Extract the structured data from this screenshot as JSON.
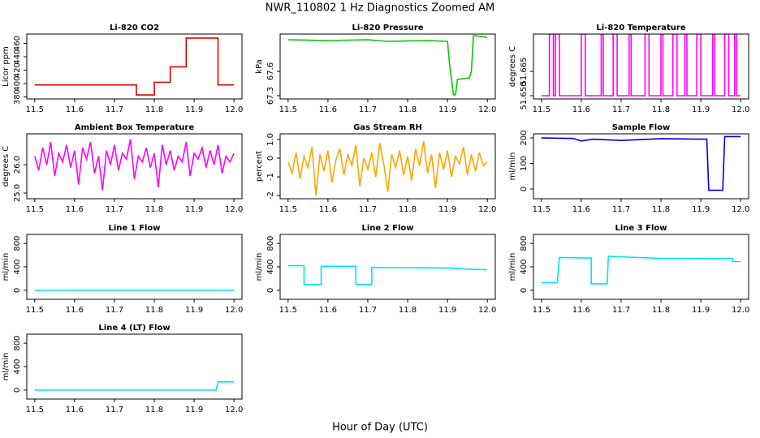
{
  "title": "NWR_110802  1 Hz Diagnostics Zoomed AM",
  "x_label": "Hour of Day (UTC)",
  "chart_data": [
    {
      "type": "line",
      "title": "Li-820 CO2",
      "y_label": "Licor ppm",
      "xlim": [
        11.48,
        12.02
      ],
      "ylim": [
        377,
        474
      ],
      "xticks": [
        11.5,
        11.6,
        11.7,
        11.8,
        11.9,
        {
          "value": 12,
          "label": "12.0"
        }
      ],
      "yticks": [
        380,
        400,
        420,
        440,
        460
      ],
      "series": [
        {
          "color": "#e00000",
          "x": [
            11.5,
            11.755,
            11.755,
            11.8,
            11.8,
            11.84,
            11.84,
            11.88,
            11.88,
            11.96,
            11.96,
            12.0
          ],
          "values": [
            398,
            398,
            383,
            383,
            402,
            402,
            425,
            425,
            468,
            468,
            398,
            398
          ]
        }
      ]
    },
    {
      "type": "line",
      "title": "Li-820 Pressure",
      "y_label": "kPa",
      "xlim": [
        11.48,
        12.02
      ],
      "ylim": [
        67.26,
        68.06
      ],
      "xticks": [
        11.5,
        11.6,
        11.7,
        11.8,
        11.9,
        {
          "value": 12,
          "label": "12.0"
        }
      ],
      "yticks": [
        67.3,
        67.6
      ],
      "series": [
        {
          "color": "#00cc00",
          "x": [
            11.5,
            11.6,
            11.7,
            11.75,
            11.85,
            11.9,
            11.905,
            11.915,
            11.92,
            11.925,
            11.955,
            11.96,
            11.965,
            11.97,
            12.0
          ],
          "values": [
            67.99,
            67.98,
            67.99,
            67.97,
            67.98,
            67.97,
            67.7,
            67.31,
            67.31,
            67.5,
            67.52,
            67.6,
            68.04,
            68.04,
            68.02
          ]
        }
      ]
    },
    {
      "type": "line",
      "title": "Li-820 Temperature",
      "y_label": "degrees C",
      "xlim": [
        11.48,
        12.02
      ],
      "ylim": [
        51.648,
        51.688
      ],
      "xticks": [
        11.5,
        11.6,
        11.7,
        11.8,
        11.9,
        {
          "value": 12,
          "label": "12.0"
        }
      ],
      "yticks": [
        {
          "value": 51.65,
          "label": "51.650"
        },
        {
          "value": 51.665,
          "label": "51.665"
        }
      ],
      "series": [
        {
          "color": "#ff00ff",
          "x": [
            11.5,
            11.52,
            11.52,
            11.53,
            11.53,
            11.535,
            11.535,
            11.545,
            11.545,
            11.6,
            11.6,
            11.61,
            11.61,
            11.65,
            11.65,
            11.655,
            11.655,
            11.68,
            11.68,
            11.69,
            11.69,
            11.72,
            11.72,
            11.725,
            11.725,
            11.76,
            11.76,
            11.77,
            11.77,
            11.8,
            11.8,
            11.805,
            11.805,
            11.83,
            11.83,
            11.84,
            11.84,
            11.86,
            11.86,
            11.865,
            11.865,
            11.89,
            11.89,
            11.9,
            11.9,
            11.93,
            11.93,
            11.935,
            11.935,
            11.96,
            11.96,
            11.97,
            11.97,
            11.985,
            11.985,
            11.99,
            11.99,
            12.0
          ],
          "values": [
            51.65,
            51.65,
            51.688,
            51.688,
            51.65,
            51.65,
            51.688,
            51.688,
            51.65,
            51.65,
            51.688,
            51.688,
            51.65,
            51.65,
            51.688,
            51.688,
            51.65,
            51.65,
            51.688,
            51.688,
            51.65,
            51.65,
            51.688,
            51.688,
            51.65,
            51.65,
            51.688,
            51.688,
            51.65,
            51.65,
            51.688,
            51.688,
            51.65,
            51.65,
            51.688,
            51.688,
            51.65,
            51.65,
            51.688,
            51.688,
            51.65,
            51.65,
            51.688,
            51.688,
            51.65,
            51.65,
            51.688,
            51.688,
            51.65,
            51.65,
            51.688,
            51.688,
            51.65,
            51.65,
            51.688,
            51.688,
            51.65,
            51.65
          ]
        }
      ]
    },
    {
      "type": "line",
      "title": "Ambient Box Temperature",
      "y_label": "degrees C",
      "xlim": [
        11.48,
        12.02
      ],
      "ylim": [
        24.8,
        27.09
      ],
      "xticks": [
        11.5,
        11.6,
        11.7,
        11.8,
        11.9,
        {
          "value": 12,
          "label": "12.0"
        }
      ],
      "yticks": [
        {
          "value": 25,
          "label": "25.0"
        },
        {
          "value": 26,
          "label": "26.0"
        }
      ],
      "series": [
        {
          "color": "#ff00ff",
          "x": [
            11.5,
            11.51,
            11.52,
            11.53,
            11.54,
            11.55,
            11.56,
            11.57,
            11.58,
            11.59,
            11.6,
            11.61,
            11.62,
            11.63,
            11.64,
            11.65,
            11.66,
            11.67,
            11.68,
            11.69,
            11.7,
            11.71,
            11.72,
            11.73,
            11.74,
            11.75,
            11.76,
            11.77,
            11.78,
            11.79,
            11.8,
            11.81,
            11.82,
            11.83,
            11.84,
            11.85,
            11.86,
            11.87,
            11.88,
            11.89,
            11.9,
            11.91,
            11.92,
            11.93,
            11.94,
            11.95,
            11.96,
            11.97,
            11.98,
            11.99,
            12.0
          ],
          "values": [
            26.3,
            25.8,
            26.6,
            26.0,
            26.8,
            25.6,
            26.4,
            26.1,
            26.7,
            25.9,
            26.5,
            25.3,
            26.6,
            26.2,
            26.8,
            25.7,
            26.3,
            25.1,
            26.5,
            26.0,
            26.7,
            25.8,
            26.4,
            26.2,
            26.9,
            25.5,
            26.3,
            26.1,
            26.6,
            25.9,
            26.4,
            25.2,
            26.7,
            26.0,
            26.5,
            25.8,
            26.3,
            26.1,
            26.8,
            25.6,
            26.4,
            26.2,
            26.6,
            25.9,
            26.5,
            26.0,
            26.7,
            25.7,
            26.3,
            26.1,
            26.4
          ]
        }
      ]
    },
    {
      "type": "line",
      "title": "Gas Stream RH",
      "y_label": "percent",
      "xlim": [
        11.48,
        12.02
      ],
      "ylim": [
        -2.17,
        1.3
      ],
      "xticks": [
        11.5,
        11.6,
        11.7,
        11.8,
        11.9,
        {
          "value": 12,
          "label": "12.0"
        }
      ],
      "yticks": [
        -2,
        -1,
        0,
        {
          "value": 1,
          "label": "1.0"
        }
      ],
      "series": [
        {
          "color": "#ffa500",
          "x": [
            11.5,
            11.51,
            11.52,
            11.53,
            11.54,
            11.55,
            11.56,
            11.57,
            11.58,
            11.59,
            11.6,
            11.61,
            11.62,
            11.63,
            11.64,
            11.65,
            11.66,
            11.67,
            11.68,
            11.69,
            11.7,
            11.71,
            11.72,
            11.73,
            11.74,
            11.75,
            11.76,
            11.77,
            11.78,
            11.79,
            11.8,
            11.81,
            11.82,
            11.83,
            11.84,
            11.85,
            11.86,
            11.87,
            11.88,
            11.89,
            11.9,
            11.91,
            11.92,
            11.93,
            11.94,
            11.95,
            11.96,
            11.97,
            11.98,
            11.99,
            12.0
          ],
          "values": [
            -0.2,
            -0.8,
            0.3,
            -1.1,
            0.1,
            -0.5,
            0.6,
            -2.0,
            0.2,
            -0.7,
            0.4,
            -1.3,
            -0.1,
            0.5,
            -0.9,
            0.2,
            -0.4,
            0.7,
            -1.5,
            0.0,
            -0.6,
            0.3,
            -1.0,
            0.8,
            -0.3,
            -1.8,
            0.2,
            -0.5,
            0.4,
            -0.9,
            0.1,
            -1.2,
            0.5,
            -0.4,
            0.9,
            -0.8,
            0.2,
            -1.6,
            0.3,
            -0.6,
            0.4,
            -1.0,
            0.1,
            -0.3,
            0.6,
            -0.9,
            0.2,
            -0.7,
            0.3,
            -0.4,
            -0.2
          ]
        }
      ]
    },
    {
      "type": "line",
      "title": "Sample Flow",
      "y_label": "ml/min",
      "xlim": [
        11.48,
        12.02
      ],
      "ylim": [
        -38,
        216
      ],
      "xticks": [
        11.5,
        11.6,
        11.7,
        11.8,
        11.9,
        {
          "value": 12,
          "label": "12.0"
        }
      ],
      "yticks": [
        0,
        100,
        200
      ],
      "series": [
        {
          "color": "#0000dd",
          "x": [
            11.5,
            11.58,
            11.6,
            11.63,
            11.7,
            11.8,
            11.9,
            11.915,
            11.92,
            11.955,
            11.96,
            12.0
          ],
          "values": [
            200,
            198,
            188,
            195,
            190,
            197,
            195,
            195,
            -5,
            -5,
            205,
            205
          ]
        }
      ]
    },
    {
      "type": "line",
      "title": "Line 1 Flow",
      "y_label": "ml/min",
      "xlim": [
        11.48,
        12.02
      ],
      "ylim": [
        -154,
        954
      ],
      "xticks": [
        11.5,
        11.6,
        11.7,
        11.8,
        11.9,
        {
          "value": 12,
          "label": "12.0"
        }
      ],
      "yticks": [
        0,
        400,
        800
      ],
      "series": [
        {
          "color": "#00e5ee",
          "x": [
            11.5,
            12.0
          ],
          "values": [
            0,
            0
          ]
        }
      ]
    },
    {
      "type": "line",
      "title": "Line 2 Flow",
      "y_label": "ml/min",
      "xlim": [
        11.48,
        12.02
      ],
      "ylim": [
        -154,
        954
      ],
      "xticks": [
        11.5,
        11.6,
        11.7,
        11.8,
        11.9,
        {
          "value": 12,
          "label": "12.0"
        }
      ],
      "yticks": [
        0,
        400,
        800
      ],
      "series": [
        {
          "color": "#00e5ee",
          "x": [
            11.5,
            11.54,
            11.54,
            11.583,
            11.583,
            11.67,
            11.67,
            11.71,
            11.71,
            11.9,
            11.96,
            12.0
          ],
          "values": [
            420,
            420,
            100,
            100,
            410,
            410,
            100,
            100,
            390,
            380,
            360,
            350
          ]
        }
      ]
    },
    {
      "type": "line",
      "title": "Line 3 Flow",
      "y_label": "ml/min",
      "xlim": [
        11.48,
        12.02
      ],
      "ylim": [
        -154,
        954
      ],
      "xticks": [
        11.5,
        11.6,
        11.7,
        11.8,
        11.9,
        {
          "value": 12,
          "label": "12.0"
        }
      ],
      "yticks": [
        0,
        400,
        800
      ],
      "series": [
        {
          "color": "#00e5ee",
          "x": [
            11.5,
            11.54,
            11.545,
            11.625,
            11.625,
            11.665,
            11.668,
            11.8,
            11.98,
            11.98,
            12.0
          ],
          "values": [
            130,
            130,
            560,
            550,
            110,
            110,
            580,
            545,
            540,
            490,
            490
          ]
        }
      ]
    },
    {
      "type": "line",
      "title": "Line 4 (LT) Flow",
      "y_label": "ml/min",
      "xlim": [
        11.48,
        12.02
      ],
      "ylim": [
        -154,
        954
      ],
      "xticks": [
        11.5,
        11.6,
        11.7,
        11.8,
        11.9,
        {
          "value": 12,
          "label": "12.0"
        }
      ],
      "yticks": [
        0,
        400,
        800
      ],
      "series": [
        {
          "color": "#00e5ee",
          "x": [
            11.5,
            11.955,
            11.96,
            12.0
          ],
          "values": [
            0,
            0,
            140,
            140
          ]
        }
      ]
    }
  ]
}
